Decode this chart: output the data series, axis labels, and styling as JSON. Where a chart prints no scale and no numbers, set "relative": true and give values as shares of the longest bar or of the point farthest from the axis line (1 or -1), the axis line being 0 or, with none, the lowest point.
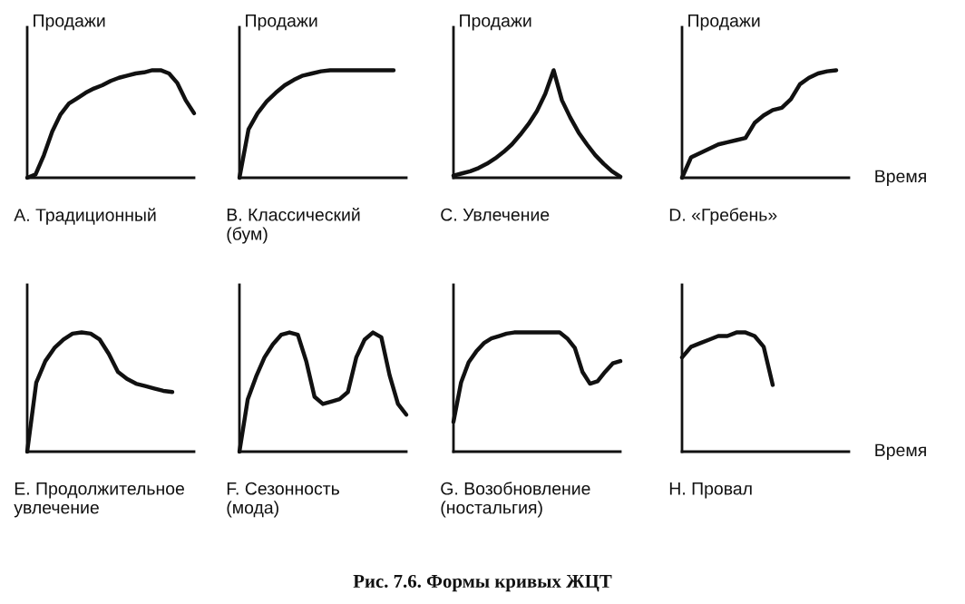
{
  "chart_data": [
    {
      "type": "line",
      "relative": true,
      "title": "A. Традиционный",
      "ylabel": "Продажи",
      "categories": [
        null,
        null,
        null,
        null,
        null,
        null,
        null,
        null,
        null,
        null,
        null,
        null,
        null,
        null,
        null,
        null,
        null,
        null,
        null,
        null,
        null
      ],
      "series": [
        {
          "color": "#111111",
          "values": [
            0,
            0.03,
            0.21,
            0.43,
            0.59,
            0.69,
            0.74,
            0.79,
            0.83,
            0.86,
            0.9,
            0.93,
            0.95,
            0.97,
            0.98,
            1,
            1,
            0.97,
            0.88,
            0.72,
            0.6
          ]
        }
      ]
    },
    {
      "type": "line",
      "relative": true,
      "title": "B. Классический\n(бум)",
      "ylabel": "Продажи",
      "categories": [
        null,
        null,
        null,
        null,
        null,
        null,
        null,
        null,
        null,
        null,
        null,
        null,
        null,
        null,
        null,
        null,
        null,
        null
      ],
      "series": [
        {
          "color": "#111111",
          "values": [
            0,
            0.45,
            0.6,
            0.71,
            0.79,
            0.86,
            0.91,
            0.95,
            0.97,
            0.99,
            1,
            1,
            1,
            1,
            1,
            1,
            1,
            1
          ]
        }
      ]
    },
    {
      "type": "line",
      "relative": true,
      "title": "C. Увлечение",
      "ylabel": "Продажи",
      "categories": [
        null,
        null,
        null,
        null,
        null,
        null,
        null,
        null,
        null,
        null,
        null,
        null,
        null,
        null,
        null,
        null,
        null,
        null,
        null,
        null,
        null
      ],
      "series": [
        {
          "color": "#111111",
          "values": [
            0.02,
            0.04,
            0.06,
            0.09,
            0.13,
            0.18,
            0.24,
            0.31,
            0.4,
            0.5,
            0.62,
            0.78,
            1,
            0.72,
            0.56,
            0.42,
            0.31,
            0.21,
            0.13,
            0.06,
            0.01
          ]
        }
      ]
    },
    {
      "type": "line",
      "relative": true,
      "title": "D. «Гребень»",
      "ylabel": "Продажи",
      "xlabel": "Время",
      "categories": [
        null,
        null,
        null,
        null,
        null,
        null,
        null,
        null,
        null,
        null,
        null,
        null,
        null,
        null,
        null,
        null,
        null,
        null
      ],
      "series": [
        {
          "color": "#111111",
          "values": [
            0,
            0.19,
            0.23,
            0.27,
            0.31,
            0.33,
            0.35,
            0.37,
            0.51,
            0.58,
            0.63,
            0.65,
            0.73,
            0.87,
            0.93,
            0.97,
            0.99,
            1
          ]
        }
      ]
    },
    {
      "type": "line",
      "relative": true,
      "title": "E. Продолжительное\nувлечение",
      "categories": [
        null,
        null,
        null,
        null,
        null,
        null,
        null,
        null,
        null,
        null,
        null,
        null,
        null,
        null,
        null,
        null,
        null
      ],
      "series": [
        {
          "color": "#111111",
          "values": [
            0,
            0.58,
            0.76,
            0.87,
            0.94,
            0.99,
            1,
            0.99,
            0.94,
            0.82,
            0.67,
            0.61,
            0.57,
            0.55,
            0.53,
            0.51,
            0.5
          ]
        }
      ]
    },
    {
      "type": "line",
      "relative": true,
      "title": "F. Сезонность\n(мода)",
      "categories": [
        null,
        null,
        null,
        null,
        null,
        null,
        null,
        null,
        null,
        null,
        null,
        null,
        null,
        null,
        null,
        null,
        null,
        null,
        null,
        null,
        null
      ],
      "series": [
        {
          "color": "#111111",
          "values": [
            0,
            0.44,
            0.63,
            0.79,
            0.9,
            0.98,
            1,
            0.98,
            0.76,
            0.46,
            0.4,
            0.42,
            0.44,
            0.5,
            0.79,
            0.94,
            1,
            0.96,
            0.64,
            0.4,
            0.31
          ]
        }
      ]
    },
    {
      "type": "line",
      "relative": true,
      "title": "G. Возобновление\n(ностальгия)",
      "categories": [
        null,
        null,
        null,
        null,
        null,
        null,
        null,
        null,
        null,
        null,
        null,
        null,
        null,
        null,
        null,
        null,
        null,
        null,
        null,
        null,
        null,
        null,
        null
      ],
      "series": [
        {
          "color": "#111111",
          "values": [
            0.25,
            0.58,
            0.75,
            0.84,
            0.91,
            0.95,
            0.97,
            0.99,
            1,
            1,
            1,
            1,
            1,
            1,
            1,
            0.95,
            0.87,
            0.67,
            0.57,
            0.59,
            0.67,
            0.74,
            0.76
          ]
        }
      ]
    },
    {
      "type": "line",
      "relative": true,
      "title": "H. Провал",
      "xlabel": "Время",
      "annotations": [
        "Рис. 7.6. Формы кривых ЖЦТ"
      ],
      "categories": [
        null,
        null,
        null,
        null,
        null,
        null,
        null,
        null,
        null,
        null,
        null
      ],
      "series": [
        {
          "color": "#111111",
          "values": [
            0.79,
            0.88,
            0.91,
            0.94,
            0.97,
            0.97,
            1,
            1,
            0.97,
            0.88,
            0.56
          ]
        }
      ]
    }
  ]
}
